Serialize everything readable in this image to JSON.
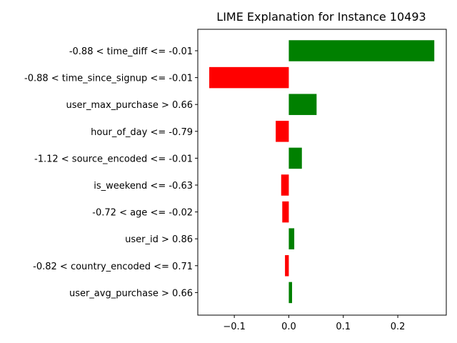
{
  "chart_data": {
    "type": "bar",
    "orientation": "horizontal",
    "title": "LIME Explanation for Instance 10493",
    "xlabel": "",
    "ylabel": "",
    "categories": [
      "-0.88 < time_diff <= -0.01",
      "-0.88 < time_since_signup <= -0.01",
      "user_max_purchase > 0.66",
      "hour_of_day <= -0.79",
      "-1.12 < source_encoded <= -0.01",
      "is_weekend <= -0.63",
      "-0.72 < age <= -0.02",
      "user_id > 0.86",
      "-0.82 < country_encoded <= 0.71",
      "user_avg_purchase > 0.66"
    ],
    "values": [
      0.267,
      -0.146,
      0.051,
      -0.024,
      0.024,
      -0.014,
      -0.012,
      0.01,
      -0.007,
      0.006
    ],
    "xlim": [
      -0.167,
      0.289
    ],
    "xticks": [
      -0.1,
      0.0,
      0.1,
      0.2
    ],
    "xtick_labels": [
      "−0.1",
      "0.0",
      "0.1",
      "0.2"
    ],
    "colors": {
      "positive": "#008000",
      "negative": "#ff0000"
    },
    "grid": false,
    "legend": "none"
  }
}
